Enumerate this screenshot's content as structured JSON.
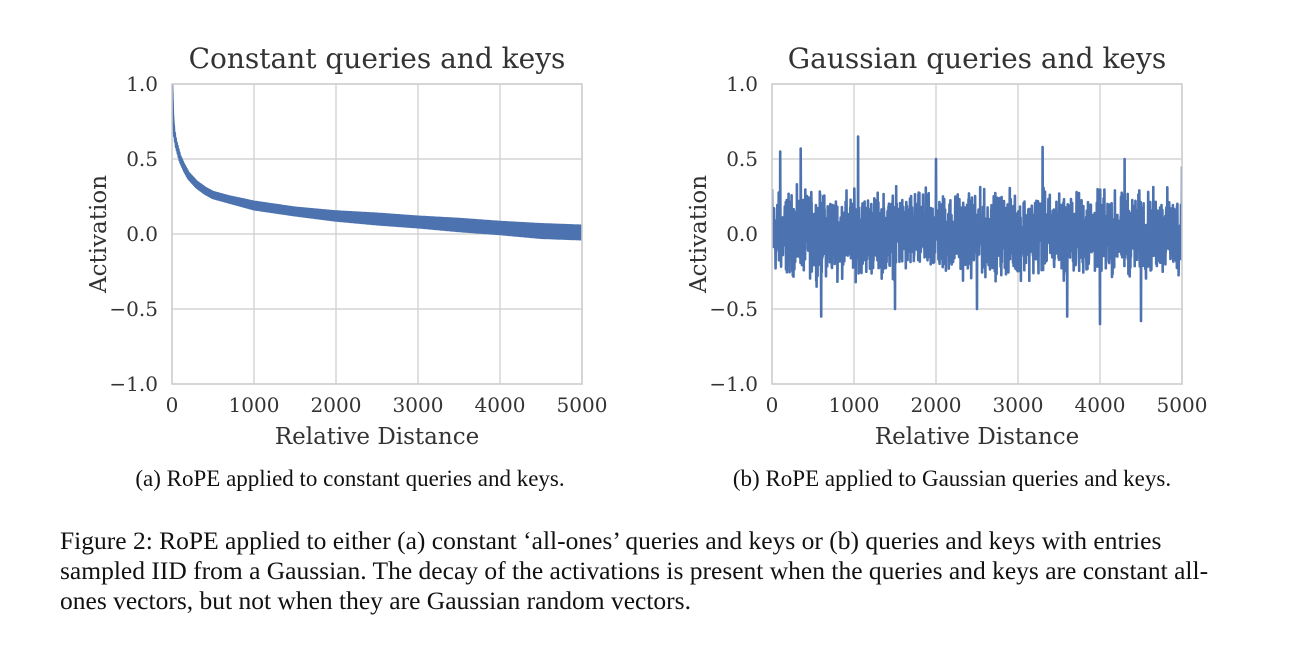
{
  "chart_data": [
    {
      "type": "line",
      "title": "Constant queries and keys",
      "xlabel": "Relative Distance",
      "ylabel": "Activation",
      "xlim": [
        0,
        5000
      ],
      "ylim": [
        -1.0,
        1.0
      ],
      "xticks": [
        "0",
        "1000",
        "2000",
        "3000",
        "4000",
        "5000"
      ],
      "yticks": [
        "1.0",
        "0.5",
        "0.0",
        "−0.5",
        "−1.0"
      ],
      "grid": true,
      "color": "#4c72b0",
      "series": [
        {
          "x": [
            0,
            10,
            25,
            50,
            100,
            150,
            200,
            300,
            400,
            500,
            700,
            1000,
            1500,
            2000,
            2500,
            3000,
            3500,
            4000,
            4500,
            5000
          ],
          "y": [
            1.0,
            0.8,
            0.68,
            0.6,
            0.5,
            0.44,
            0.39,
            0.33,
            0.29,
            0.26,
            0.23,
            0.19,
            0.15,
            0.12,
            0.1,
            0.08,
            0.06,
            0.04,
            0.02,
            0.01
          ],
          "band": [
            0.0,
            0.0,
            0.02,
            0.02,
            0.02,
            0.02,
            0.02,
            0.02,
            0.02,
            0.02,
            0.02,
            0.025,
            0.025,
            0.03,
            0.035,
            0.035,
            0.04,
            0.04,
            0.045,
            0.045
          ]
        }
      ]
    },
    {
      "type": "line",
      "title": "Gaussian queries and keys",
      "xlabel": "Relative Distance",
      "ylabel": "Activation",
      "xlim": [
        0,
        5000
      ],
      "ylim": [
        -1.0,
        1.0
      ],
      "xticks": [
        "0",
        "1000",
        "2000",
        "3000",
        "4000",
        "5000"
      ],
      "yticks": [
        "1.0",
        "0.5",
        "0.0",
        "−0.5",
        "−1.0"
      ],
      "grid": true,
      "color": "#4c72b0",
      "series": [
        {
          "x": [
            0,
            100,
            350,
            600,
            1050,
            1500,
            2000,
            2500,
            3300,
            3600,
            4000,
            4300,
            4500,
            5000
          ],
          "y": [
            0.3,
            0.55,
            0.57,
            -0.55,
            0.65,
            -0.5,
            0.5,
            -0.5,
            0.58,
            -0.55,
            -0.6,
            0.5,
            -0.58,
            0.45
          ],
          "envelope_max": 0.37,
          "envelope_min": -0.37
        }
      ]
    }
  ],
  "subcaptions": {
    "a": "(a) RoPE applied to constant queries and keys.",
    "b": "(b) RoPE applied to Gaussian queries and keys."
  },
  "caption": "Figure 2: RoPE applied to either (a) constant ‘all-ones’ queries and keys or (b) queries and keys with entries sampled IID from a Gaussian. The decay of the activations is present when the queries and keys are constant all-ones vectors, but not when they are Gaussian random vectors."
}
